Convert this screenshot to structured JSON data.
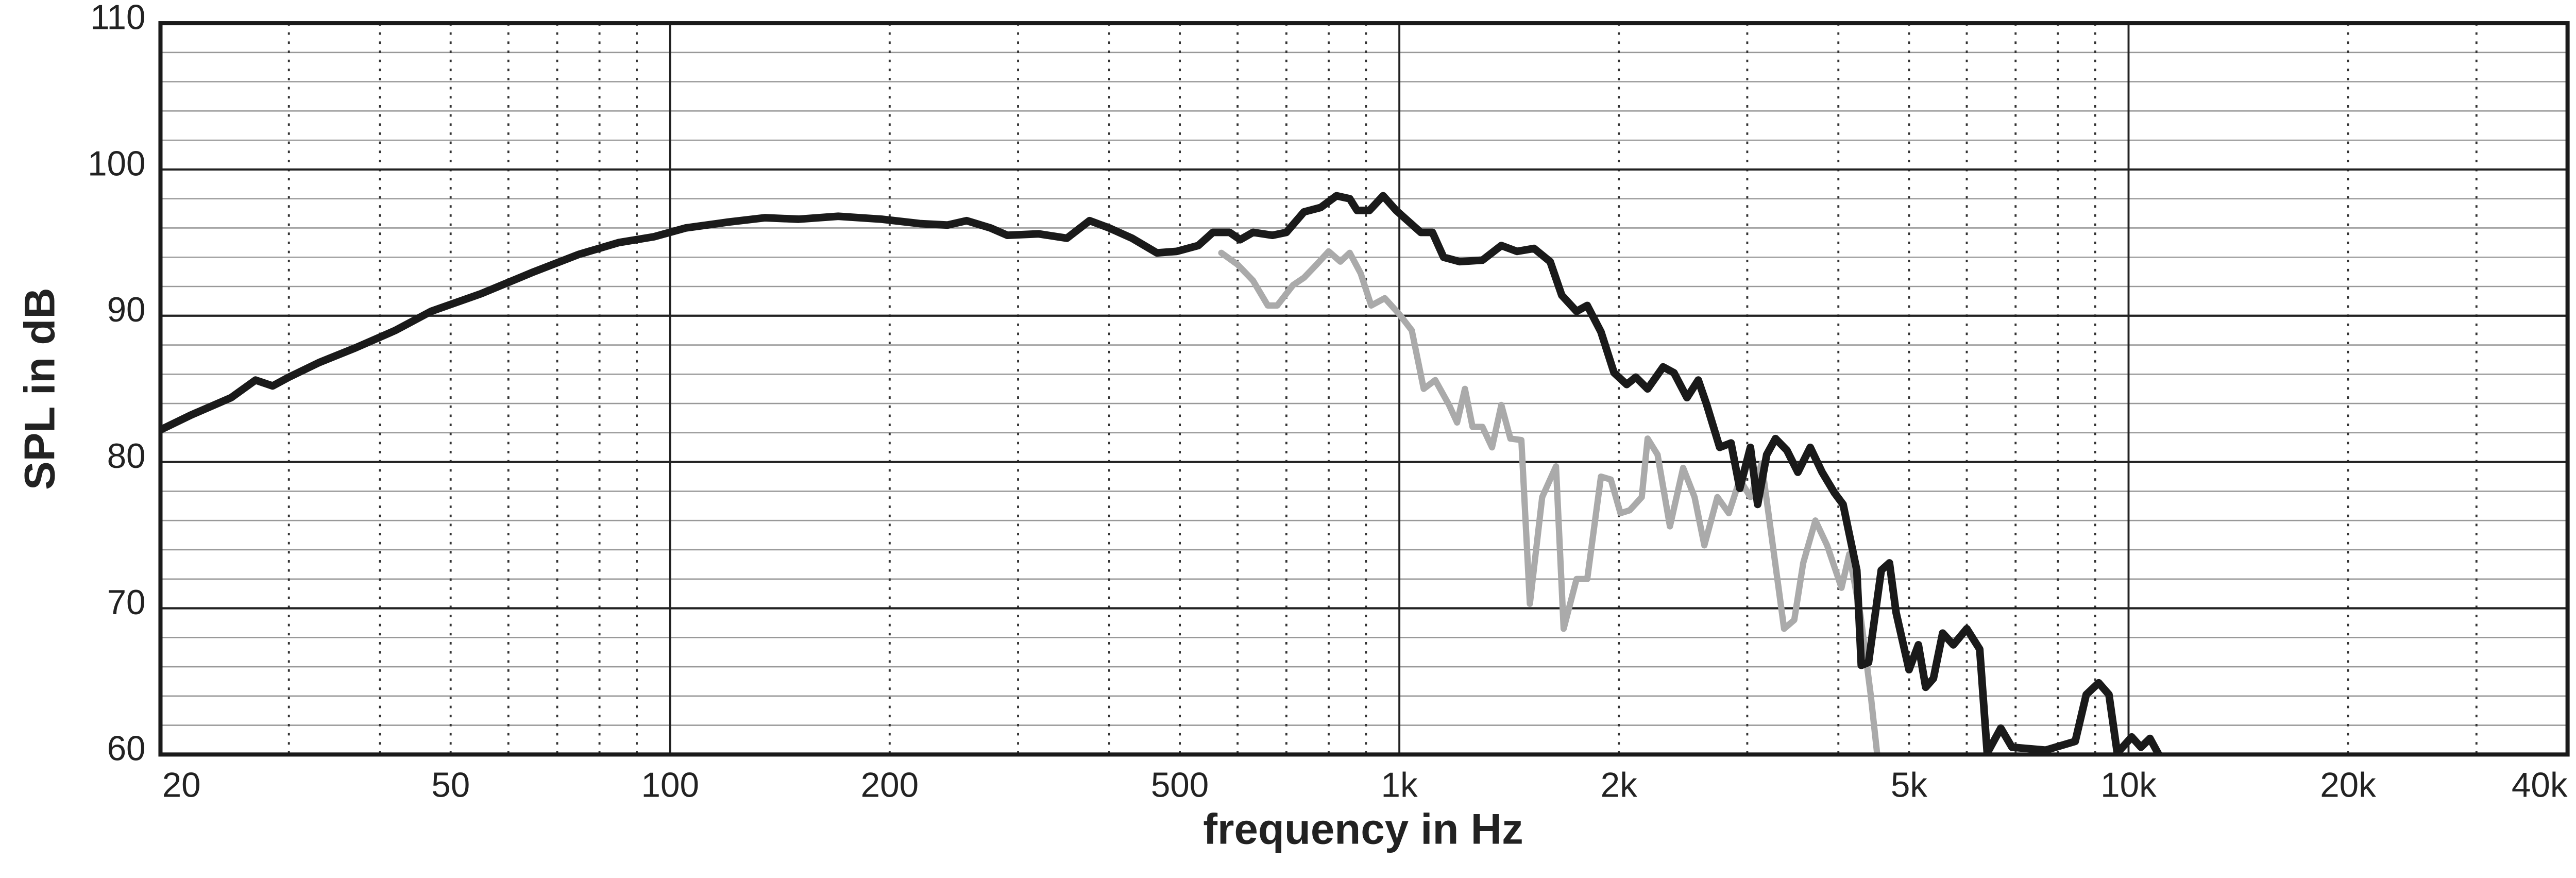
{
  "chart_data": {
    "type": "line",
    "x_label": "frequency in Hz",
    "y_label": "SPL in dB",
    "x_scale": "log",
    "xlim": [
      20,
      40000
    ],
    "ylim": [
      60,
      110
    ],
    "xticks": [
      20,
      50,
      100,
      200,
      500,
      {
        "value": 1000,
        "label": "1k"
      },
      {
        "value": 2000,
        "label": "2k"
      },
      {
        "value": 5000,
        "label": "5k"
      },
      {
        "value": 10000,
        "label": "10k"
      },
      {
        "value": 20000,
        "label": "20k"
      },
      {
        "value": 40000,
        "label": "40k"
      }
    ],
    "yticks": [
      60,
      70,
      80,
      90,
      100,
      110
    ],
    "xgrid_major": [
      100,
      1000,
      10000
    ],
    "xgrid_minor": [
      30,
      40,
      50,
      60,
      70,
      80,
      90,
      200,
      300,
      400,
      500,
      600,
      700,
      800,
      900,
      2000,
      3000,
      4000,
      5000,
      6000,
      7000,
      8000,
      9000,
      20000,
      30000
    ],
    "ygrid_minor": [
      62,
      64,
      66,
      68,
      72,
      74,
      76,
      78,
      82,
      84,
      86,
      88,
      92,
      94,
      96,
      98,
      102,
      104,
      106,
      108
    ],
    "grid": true,
    "series": [
      {
        "color": "#aaaaaa",
        "x": [
          570,
          600,
          630,
          660,
          680,
          715,
          740,
          770,
          800,
          830,
          855,
          885,
          915,
          955,
          1000,
          1040,
          1080,
          1120,
          1170,
          1200,
          1230,
          1260,
          1300,
          1340,
          1380,
          1420,
          1470,
          1510,
          1570,
          1640,
          1680,
          1750,
          1810,
          1890,
          1950,
          2010,
          2070,
          2150,
          2190,
          2260,
          2350,
          2450,
          2540,
          2620,
          2730,
          2830,
          2930,
          3030,
          3140,
          3370,
          3480,
          3580,
          3720,
          3860,
          4040,
          4140,
          4290,
          4430,
          4520
        ],
        "values": [
          94.3,
          93.5,
          92.4,
          90.7,
          90.7,
          92.1,
          92.6,
          93.5,
          94.4,
          93.7,
          94.3,
          92.9,
          90.7,
          91.2,
          90.1,
          89.0,
          85.0,
          85.6,
          83.9,
          82.7,
          85.0,
          82.4,
          82.4,
          81.0,
          83.9,
          81.6,
          81.5,
          70.3,
          77.6,
          79.7,
          68.6,
          72.0,
          72.0,
          79.0,
          78.8,
          76.5,
          76.7,
          77.6,
          81.6,
          80.5,
          75.6,
          79.6,
          77.6,
          74.3,
          77.6,
          76.5,
          78.8,
          77.6,
          79.9,
          68.6,
          69.2,
          73.1,
          76.0,
          74.3,
          71.4,
          73.7,
          69.5,
          64.1,
          60.1
        ]
      },
      {
        "color": "#1a1a1a",
        "x": [
          20,
          22,
          25,
          27,
          28.5,
          30,
          33,
          37,
          42,
          47,
          55,
          65,
          75,
          85,
          95,
          105,
          120,
          135,
          150,
          170,
          195,
          220,
          240,
          255,
          275,
          290,
          320,
          350,
          376,
          400,
          430,
          465,
          495,
          530,
          555,
          585,
          605,
          630,
          670,
          700,
          740,
          780,
          820,
          855,
          875,
          910,
          950,
          990,
          1070,
          1110,
          1150,
          1210,
          1300,
          1380,
          1450,
          1530,
          1610,
          1670,
          1750,
          1810,
          1890,
          1970,
          2050,
          2110,
          2190,
          2300,
          2380,
          2480,
          2570,
          2640,
          2750,
          2850,
          2930,
          3030,
          3100,
          3190,
          3280,
          3400,
          3520,
          3660,
          3800,
          3950,
          4060,
          4240,
          4300,
          4400,
          4580,
          4700,
          4800,
          5000,
          5150,
          5270,
          5400,
          5560,
          5750,
          6000,
          6250,
          6400,
          6680,
          6920,
          7700,
          8450,
          8750,
          9100,
          9400,
          9650,
          10100,
          10400,
          10700,
          11000
        ],
        "values": [
          82.2,
          83.2,
          84.4,
          85.6,
          85.2,
          85.8,
          86.8,
          87.8,
          89.0,
          90.3,
          91.5,
          93.0,
          94.2,
          95.0,
          95.4,
          96.0,
          96.4,
          96.7,
          96.6,
          96.8,
          96.6,
          96.3,
          96.2,
          96.5,
          96.0,
          95.5,
          95.6,
          95.3,
          96.5,
          96.0,
          95.3,
          94.3,
          94.4,
          94.8,
          95.7,
          95.7,
          95.2,
          95.7,
          95.5,
          95.7,
          97.1,
          97.4,
          98.2,
          98.0,
          97.2,
          97.2,
          98.2,
          97.2,
          95.7,
          95.7,
          94.0,
          93.7,
          93.8,
          94.8,
          94.4,
          94.6,
          93.7,
          91.4,
          90.3,
          90.7,
          88.9,
          86.1,
          85.3,
          85.8,
          85.0,
          86.5,
          86.1,
          84.4,
          85.6,
          83.9,
          81.0,
          81.3,
          78.2,
          81.0,
          77.1,
          80.5,
          81.6,
          80.8,
          79.3,
          81.0,
          79.3,
          77.9,
          77.1,
          72.6,
          66.1,
          66.3,
          72.6,
          73.1,
          69.7,
          65.8,
          67.5,
          64.6,
          65.2,
          68.3,
          67.5,
          68.6,
          67.2,
          60.1,
          61.8,
          60.5,
          60.3,
          60.9,
          64.1,
          64.9,
          64.1,
          60.1,
          61.2,
          60.5,
          61.1,
          60.0
        ]
      }
    ]
  }
}
